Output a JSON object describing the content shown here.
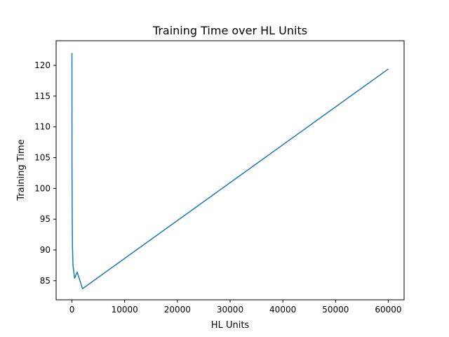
{
  "chart_data": {
    "type": "line",
    "title": "Training Time over HL Units",
    "xlabel": "HL Units",
    "ylabel": "Training Time",
    "xlim": [
      -3000,
      63000
    ],
    "ylim": [
      81.9,
      124.0
    ],
    "xticks": [
      0,
      10000,
      20000,
      30000,
      40000,
      50000,
      60000
    ],
    "yticks": [
      85,
      90,
      95,
      100,
      105,
      110,
      115,
      120
    ],
    "grid": false,
    "series": [
      {
        "color": "#1f77b4",
        "x": [
          1,
          10,
          50,
          100,
          200,
          500,
          1000,
          2000,
          60000
        ],
        "y": [
          122.0,
          104.0,
          96.0,
          90.5,
          87.5,
          85.4,
          86.4,
          83.7,
          119.4
        ]
      }
    ]
  }
}
